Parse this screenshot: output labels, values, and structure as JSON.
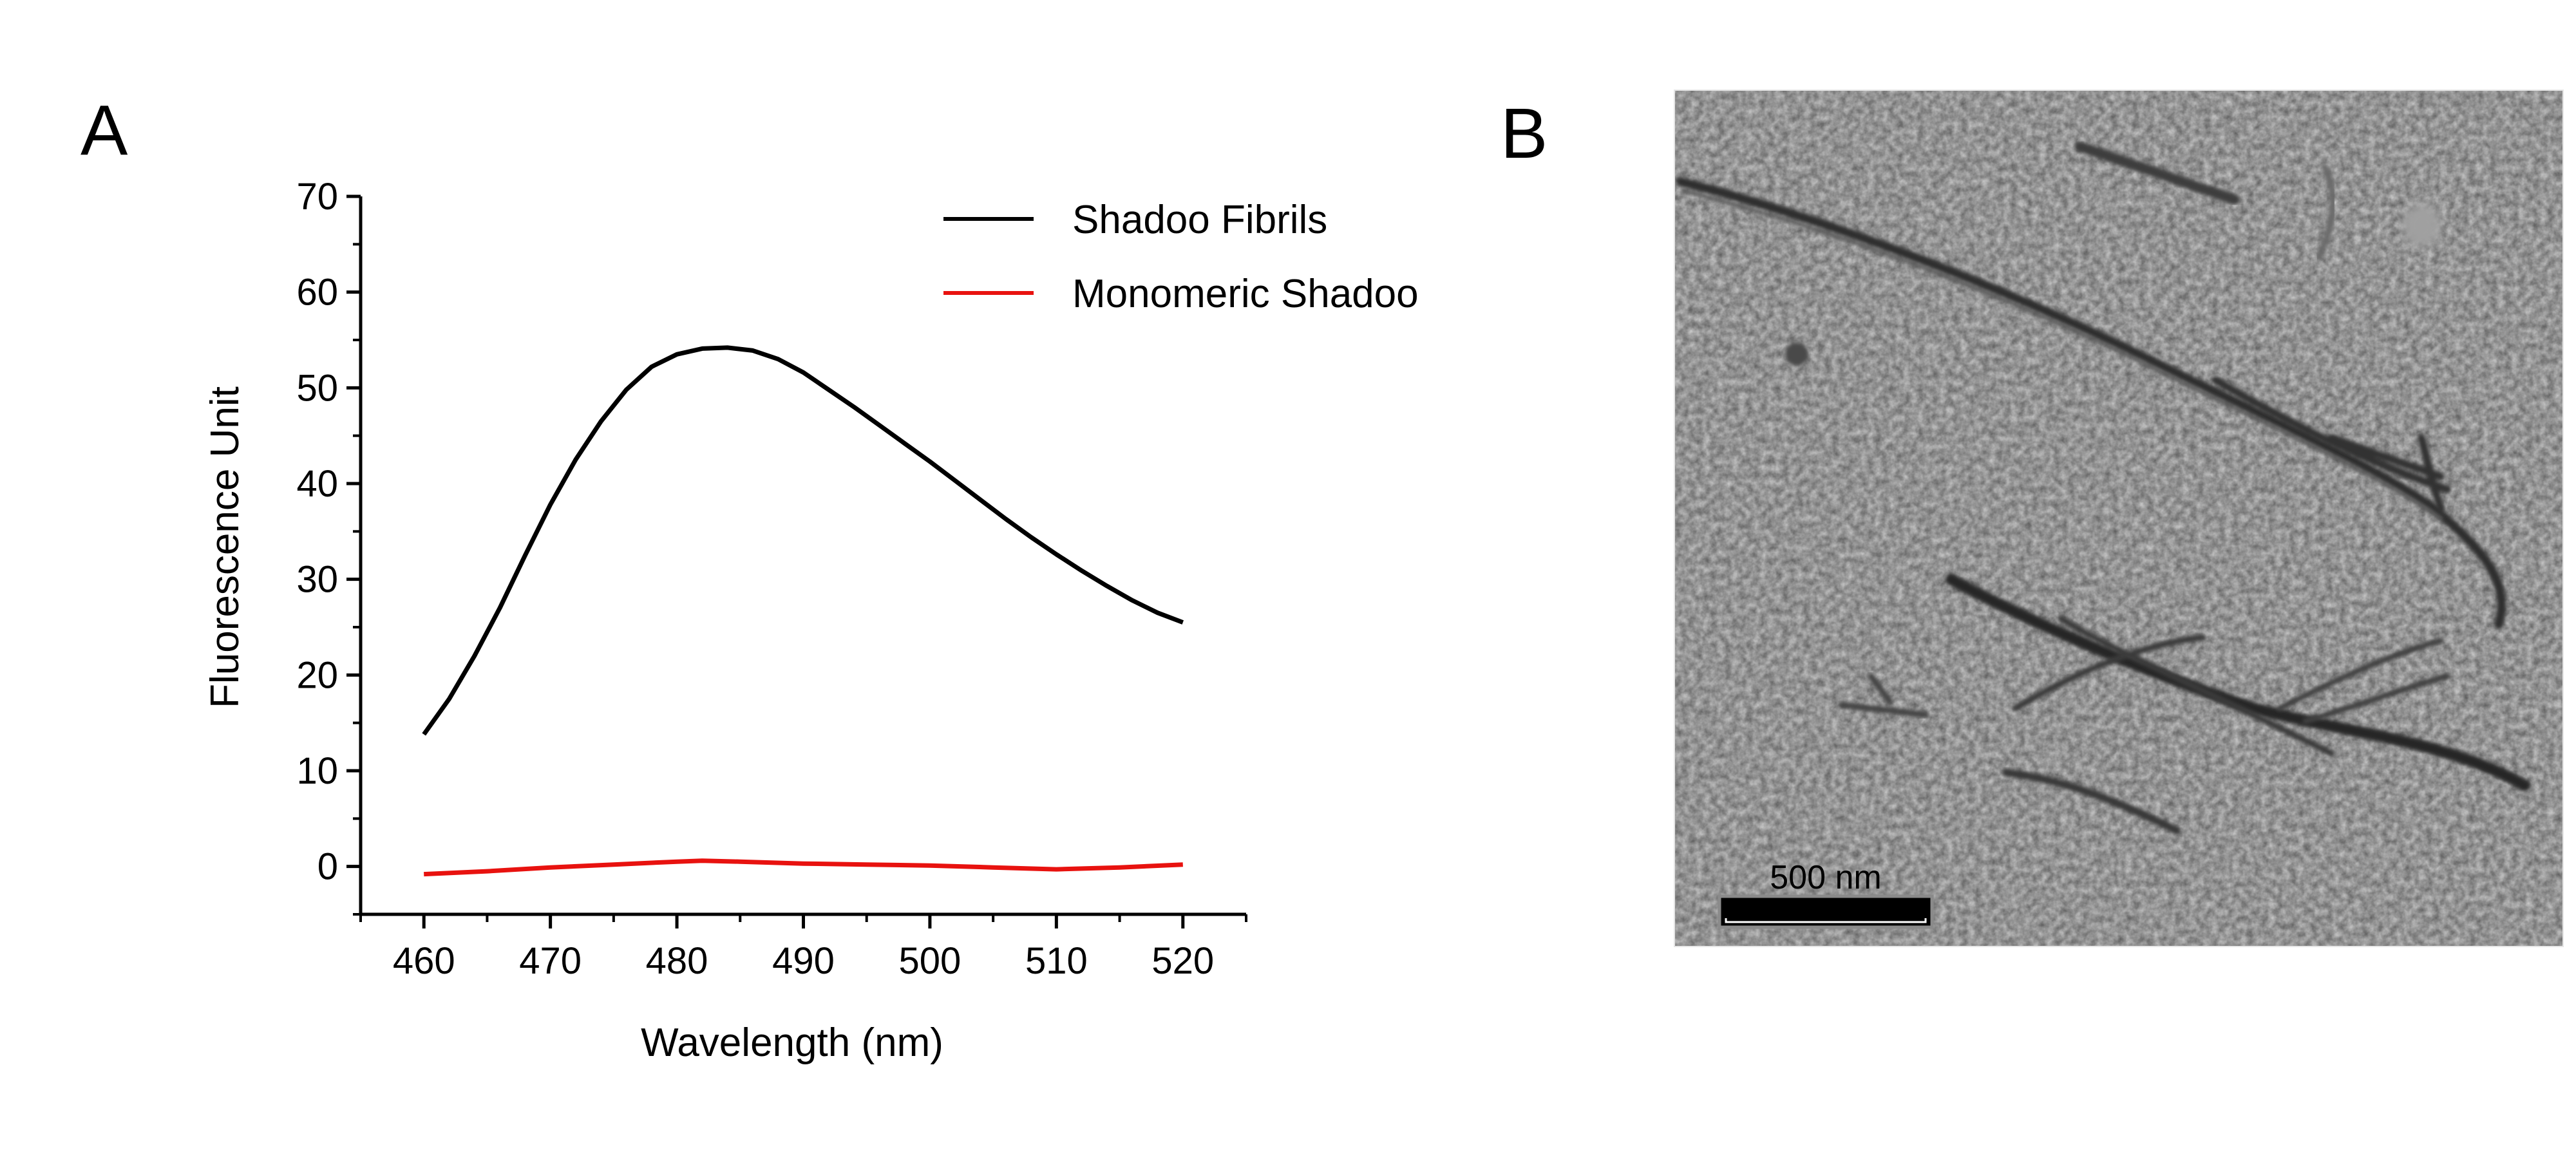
{
  "panels": {
    "a_label": "A",
    "b_label": "B"
  },
  "chart_data": {
    "type": "line",
    "xlabel": "Wavelength (nm)",
    "ylabel": "Fluorescence Unit",
    "xlim": [
      455,
      525
    ],
    "ylim": [
      -5,
      70
    ],
    "xticks": [
      460,
      470,
      480,
      490,
      500,
      510,
      520
    ],
    "yticks": [
      0,
      10,
      20,
      30,
      40,
      50,
      60,
      70
    ],
    "grid": false,
    "legend_position": "top-right",
    "series": [
      {
        "name": "Shadoo Fibrils",
        "color": "#000000",
        "x": [
          460,
          462,
          464,
          466,
          468,
          470,
          472,
          474,
          476,
          478,
          480,
          482,
          484,
          486,
          488,
          490,
          492,
          494,
          496,
          498,
          500,
          502,
          504,
          506,
          508,
          510,
          512,
          514,
          516,
          518,
          520
        ],
        "y": [
          13.8,
          17.5,
          22.0,
          27.0,
          32.5,
          37.8,
          42.5,
          46.5,
          49.8,
          52.2,
          53.5,
          54.1,
          54.2,
          53.9,
          53.0,
          51.6,
          49.8,
          48.0,
          46.1,
          44.2,
          42.3,
          40.3,
          38.3,
          36.3,
          34.4,
          32.6,
          30.9,
          29.3,
          27.8,
          26.5,
          25.5
        ]
      },
      {
        "name": "Monomeric Shadoo",
        "color": "#e8120f",
        "x": [
          460,
          465,
          470,
          475,
          480,
          482,
          485,
          490,
          495,
          500,
          505,
          510,
          515,
          520
        ],
        "y": [
          -0.8,
          -0.5,
          -0.1,
          0.2,
          0.5,
          0.6,
          0.5,
          0.3,
          0.2,
          0.1,
          -0.1,
          -0.3,
          -0.1,
          0.2
        ]
      }
    ]
  },
  "micrograph": {
    "scale_label": "500 nm"
  }
}
